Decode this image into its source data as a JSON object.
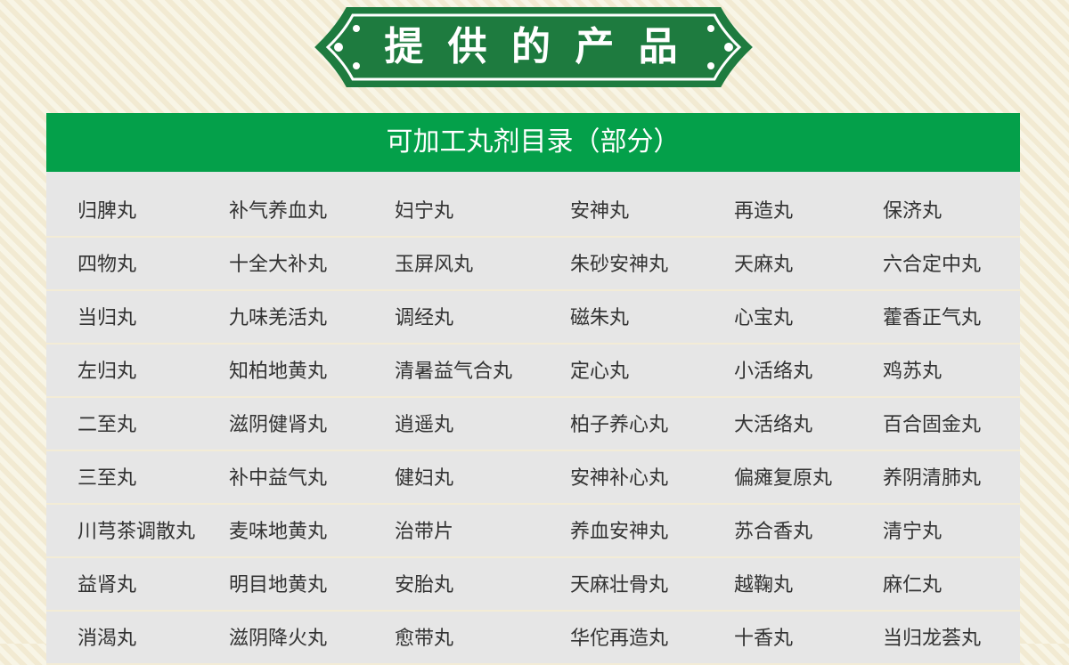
{
  "header": {
    "title": "提 供 的 产 品"
  },
  "table": {
    "title": "可加工丸剂目录（部分）",
    "rows": [
      [
        "归脾丸",
        "补气养血丸",
        "妇宁丸",
        "安神丸",
        "再造丸",
        "保济丸"
      ],
      [
        "四物丸",
        "十全大补丸",
        "玉屏风丸",
        "朱砂安神丸",
        "天麻丸",
        "六合定中丸"
      ],
      [
        "当归丸",
        "九味羌活丸",
        "调经丸",
        "磁朱丸",
        "心宝丸",
        "藿香正气丸"
      ],
      [
        "左归丸",
        "知柏地黄丸",
        "清暑益气合丸",
        "定心丸",
        "小活络丸",
        "鸡苏丸"
      ],
      [
        "二至丸",
        "滋阴健肾丸",
        "逍遥丸",
        "柏子养心丸",
        "大活络丸",
        "百合固金丸"
      ],
      [
        "三至丸",
        "补中益气丸",
        "健妇丸",
        "安神补心丸",
        "偏瘫复原丸",
        "养阴清肺丸"
      ],
      [
        "川芎茶调散丸",
        "麦味地黄丸",
        "治带片",
        "养血安神丸",
        "苏合香丸",
        "清宁丸"
      ],
      [
        "益肾丸",
        "明目地黄丸",
        "安胎丸",
        "天麻壮骨丸",
        "越鞠丸",
        "麻仁丸"
      ],
      [
        "消渴丸",
        "滋阴降火丸",
        "愈带丸",
        "华佗再造丸",
        "十香丸",
        "当归龙荟丸"
      ]
    ]
  }
}
